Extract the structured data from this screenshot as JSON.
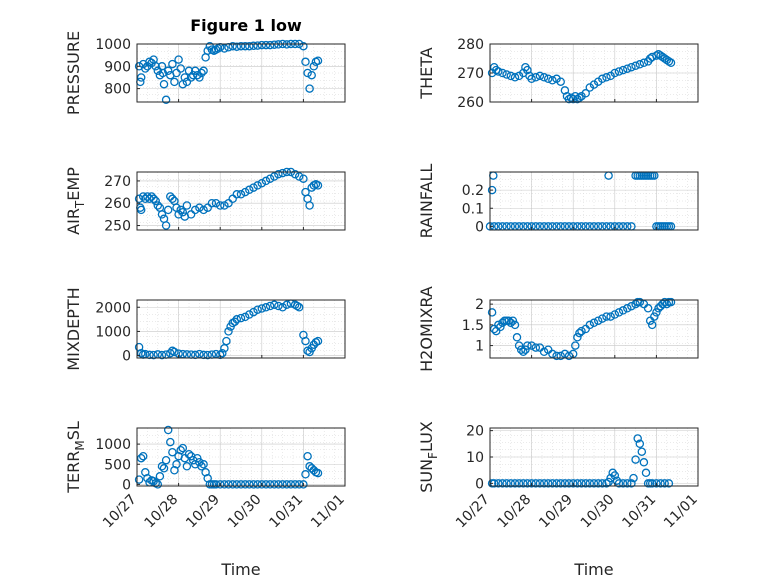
{
  "figure": {
    "title": "Figure 1 low",
    "marker_color": "#0072BD"
  },
  "chart_data": [
    {
      "id": "pressure",
      "type": "scatter",
      "ylabel": "PRESSURE",
      "xlabel": "",
      "ylim": [
        740,
        1000
      ],
      "yticks": [
        800,
        900,
        1000
      ],
      "yticklabels": [
        "800",
        "900",
        "1000"
      ],
      "xlim": [
        0,
        5
      ],
      "xticks": [
        0,
        1,
        2,
        3,
        4,
        5
      ],
      "x": [
        0.05,
        0.08,
        0.1,
        0.15,
        0.2,
        0.25,
        0.3,
        0.35,
        0.4,
        0.45,
        0.5,
        0.55,
        0.6,
        0.62,
        0.65,
        0.7,
        0.75,
        0.8,
        0.85,
        0.9,
        0.95,
        1.0,
        1.05,
        1.1,
        1.15,
        1.2,
        1.25,
        1.3,
        1.35,
        1.4,
        1.45,
        1.5,
        1.55,
        1.6,
        1.65,
        1.7,
        1.75,
        1.8,
        1.85,
        1.9,
        1.95,
        2.0,
        2.1,
        2.2,
        2.3,
        2.4,
        2.5,
        2.6,
        2.7,
        2.8,
        2.9,
        3.0,
        3.1,
        3.2,
        3.3,
        3.4,
        3.5,
        3.6,
        3.7,
        3.8,
        3.9,
        4.0,
        4.05,
        4.1,
        4.15,
        4.2,
        4.25,
        4.3,
        4.35
      ],
      "y": [
        900,
        830,
        850,
        910,
        890,
        900,
        920,
        915,
        930,
        900,
        880,
        860,
        900,
        870,
        820,
        750,
        880,
        860,
        910,
        830,
        870,
        930,
        890,
        820,
        850,
        830,
        880,
        850,
        860,
        880,
        860,
        850,
        870,
        880,
        940,
        970,
        990,
        975,
        970,
        975,
        980,
        985,
        980,
        985,
        990,
        988,
        990,
        990,
        990,
        992,
        993,
        995,
        995,
        995,
        997,
        998,
        1000,
        998,
        1000,
        1000,
        1000,
        990,
        920,
        870,
        800,
        860,
        900,
        920,
        925
      ]
    },
    {
      "id": "theta",
      "type": "scatter",
      "ylabel": "THETA",
      "xlabel": "",
      "ylim": [
        260,
        280
      ],
      "yticks": [
        260,
        270,
        280
      ],
      "yticklabels": [
        "260",
        "270",
        "280"
      ],
      "xlim": [
        0,
        5
      ],
      "xticks": [
        0,
        1,
        2,
        3,
        4,
        5
      ],
      "x": [
        0.05,
        0.1,
        0.15,
        0.2,
        0.3,
        0.4,
        0.5,
        0.6,
        0.7,
        0.8,
        0.85,
        0.9,
        0.95,
        1.0,
        1.1,
        1.2,
        1.3,
        1.4,
        1.5,
        1.6,
        1.7,
        1.8,
        1.85,
        1.9,
        1.95,
        2.0,
        2.05,
        2.1,
        2.15,
        2.2,
        2.3,
        2.4,
        2.5,
        2.6,
        2.7,
        2.8,
        2.9,
        3.0,
        3.1,
        3.2,
        3.3,
        3.4,
        3.5,
        3.6,
        3.7,
        3.8,
        3.85,
        3.9,
        4.0,
        4.05,
        4.1,
        4.15,
        4.2,
        4.25,
        4.3,
        4.35
      ],
      "y": [
        270,
        272,
        271,
        270.5,
        270,
        269.5,
        269,
        268.5,
        269,
        270,
        272,
        271,
        269,
        268,
        268.5,
        269,
        268.5,
        268,
        267.5,
        268,
        267,
        264,
        262,
        261,
        261.5,
        261,
        262,
        261,
        261.5,
        262,
        263,
        265,
        266,
        267,
        268,
        268.5,
        269,
        270,
        270.5,
        271,
        271.5,
        272,
        272.5,
        273,
        273.5,
        274,
        275,
        275.5,
        276,
        276.5,
        276,
        275.5,
        275,
        274.5,
        274,
        273.5
      ]
    },
    {
      "id": "air_temp",
      "type": "scatter",
      "ylabel": "AIR_TEMP",
      "xlabel": "",
      "ylim": [
        248,
        274
      ],
      "yticks": [
        250,
        260,
        270
      ],
      "yticklabels": [
        "250",
        "260",
        "270"
      ],
      "xlim": [
        0,
        5
      ],
      "xticks": [
        0,
        1,
        2,
        3,
        4,
        5
      ],
      "x": [
        0.05,
        0.08,
        0.1,
        0.15,
        0.2,
        0.25,
        0.3,
        0.35,
        0.4,
        0.45,
        0.5,
        0.55,
        0.6,
        0.65,
        0.7,
        0.75,
        0.8,
        0.85,
        0.9,
        0.95,
        1.0,
        1.05,
        1.1,
        1.15,
        1.2,
        1.3,
        1.4,
        1.5,
        1.6,
        1.7,
        1.8,
        1.9,
        2.0,
        2.1,
        2.2,
        2.3,
        2.4,
        2.5,
        2.6,
        2.7,
        2.8,
        2.9,
        3.0,
        3.1,
        3.2,
        3.3,
        3.4,
        3.5,
        3.6,
        3.7,
        3.8,
        3.9,
        4.0,
        4.05,
        4.1,
        4.15,
        4.2,
        4.25,
        4.3,
        4.35
      ],
      "y": [
        262,
        258,
        257,
        263,
        262,
        263,
        262,
        263,
        262,
        261,
        259,
        258,
        255,
        253,
        250,
        257,
        263,
        262,
        261,
        258,
        255,
        257,
        256,
        254,
        259,
        255,
        257,
        258,
        257,
        258,
        260,
        260,
        259,
        259,
        260,
        262,
        264,
        264,
        265,
        266,
        267,
        268,
        269,
        270,
        271,
        272,
        273,
        273.5,
        274,
        274,
        273,
        272,
        271,
        265,
        262,
        259,
        267,
        268,
        268.5,
        268
      ]
    },
    {
      "id": "rainfall",
      "type": "scatter",
      "ylabel": "RAINFALL",
      "xlabel": "",
      "ylim": [
        -0.02,
        0.3
      ],
      "yticks": [
        0,
        0.1,
        0.2
      ],
      "yticklabels": [
        "0",
        "0.1",
        "0.2"
      ],
      "xlim": [
        0,
        5
      ],
      "xticks": [
        0,
        1,
        2,
        3,
        4,
        5
      ],
      "x": [
        0.0,
        0.05,
        0.08,
        0.1,
        0.2,
        0.3,
        0.4,
        0.5,
        0.6,
        0.7,
        0.8,
        0.9,
        1.0,
        1.1,
        1.2,
        1.3,
        1.4,
        1.5,
        1.6,
        1.7,
        1.8,
        1.9,
        2.0,
        2.1,
        2.2,
        2.3,
        2.4,
        2.5,
        2.6,
        2.7,
        2.8,
        2.85,
        2.9,
        3.0,
        3.1,
        3.2,
        3.3,
        3.4,
        3.5,
        3.55,
        3.6,
        3.65,
        3.7,
        3.75,
        3.8,
        3.85,
        3.9,
        3.95,
        4.0,
        4.05,
        4.1,
        4.15,
        4.2,
        4.25,
        4.3,
        4.35
      ],
      "y": [
        0,
        0.2,
        0.28,
        0,
        0,
        0,
        0,
        0,
        0,
        0,
        0,
        0,
        0,
        0,
        0,
        0,
        0,
        0,
        0,
        0,
        0,
        0,
        0,
        0,
        0,
        0,
        0,
        0,
        0,
        0,
        0,
        0.28,
        0,
        0,
        0,
        0,
        0,
        0,
        0.28,
        0.28,
        0.28,
        0.28,
        0.28,
        0.28,
        0.28,
        0.28,
        0.28,
        0.28,
        0,
        0,
        0,
        0,
        0,
        0,
        0,
        0
      ]
    },
    {
      "id": "mixdepth",
      "type": "scatter",
      "ylabel": "MIXDEPTH",
      "xlabel": "",
      "ylim": [
        -100,
        2300
      ],
      "yticks": [
        0,
        1000,
        2000
      ],
      "yticklabels": [
        "0",
        "1000",
        "2000"
      ],
      "xlim": [
        0,
        5
      ],
      "xticks": [
        0,
        1,
        2,
        3,
        4,
        5
      ],
      "x": [
        0.05,
        0.1,
        0.15,
        0.2,
        0.3,
        0.4,
        0.5,
        0.6,
        0.7,
        0.8,
        0.85,
        0.9,
        1.0,
        1.1,
        1.2,
        1.3,
        1.4,
        1.5,
        1.6,
        1.7,
        1.8,
        1.9,
        2.0,
        2.05,
        2.1,
        2.15,
        2.2,
        2.25,
        2.3,
        2.35,
        2.4,
        2.5,
        2.6,
        2.7,
        2.8,
        2.9,
        3.0,
        3.1,
        3.2,
        3.3,
        3.4,
        3.5,
        3.6,
        3.7,
        3.8,
        3.85,
        3.9,
        4.0,
        4.05,
        4.1,
        4.15,
        4.2,
        4.25,
        4.3,
        4.35
      ],
      "y": [
        350,
        100,
        40,
        60,
        30,
        20,
        50,
        20,
        40,
        100,
        200,
        150,
        80,
        60,
        50,
        40,
        30,
        60,
        30,
        20,
        40,
        60,
        30,
        100,
        300,
        600,
        1000,
        1200,
        1350,
        1400,
        1500,
        1550,
        1600,
        1700,
        1800,
        1900,
        1950,
        2000,
        2050,
        2100,
        2050,
        2000,
        2100,
        2150,
        2100,
        2050,
        2000,
        850,
        600,
        200,
        150,
        300,
        450,
        550,
        600
      ]
    },
    {
      "id": "h2omixra",
      "type": "scatter",
      "ylabel": "H2OMIXRA",
      "xlabel": "",
      "ylim": [
        0.7,
        2.1
      ],
      "yticks": [
        1,
        1.5,
        2
      ],
      "yticklabels": [
        "1",
        "1.5",
        "2"
      ],
      "xlim": [
        0,
        5
      ],
      "xticks": [
        0,
        1,
        2,
        3,
        4,
        5
      ],
      "x": [
        0.05,
        0.1,
        0.15,
        0.2,
        0.25,
        0.3,
        0.35,
        0.4,
        0.45,
        0.5,
        0.55,
        0.6,
        0.65,
        0.7,
        0.75,
        0.8,
        0.85,
        0.9,
        1.0,
        1.1,
        1.2,
        1.3,
        1.4,
        1.5,
        1.6,
        1.7,
        1.8,
        1.9,
        2.0,
        2.05,
        2.1,
        2.15,
        2.2,
        2.3,
        2.4,
        2.5,
        2.6,
        2.7,
        2.8,
        2.9,
        3.0,
        3.1,
        3.2,
        3.3,
        3.4,
        3.5,
        3.55,
        3.6,
        3.7,
        3.8,
        3.85,
        3.9,
        3.95,
        4.0,
        4.05,
        4.1,
        4.15,
        4.2,
        4.25,
        4.3,
        4.35
      ],
      "y": [
        1.8,
        1.4,
        1.35,
        1.5,
        1.45,
        1.55,
        1.6,
        1.6,
        1.6,
        1.55,
        1.6,
        1.5,
        1.2,
        1.0,
        0.9,
        0.85,
        0.9,
        1.0,
        1.0,
        0.95,
        0.95,
        0.85,
        0.9,
        0.8,
        0.75,
        0.75,
        0.8,
        0.75,
        0.8,
        1.0,
        1.2,
        1.3,
        1.35,
        1.4,
        1.5,
        1.55,
        1.6,
        1.65,
        1.7,
        1.7,
        1.75,
        1.8,
        1.85,
        1.9,
        1.95,
        2.0,
        2.05,
        2.05,
        2.0,
        1.9,
        1.6,
        1.5,
        1.7,
        1.8,
        1.9,
        1.95,
        2.0,
        2.05,
        2.0,
        2.05,
        2.05
      ]
    },
    {
      "id": "terr_msl",
      "type": "scatter",
      "ylabel": "TERR_MSL",
      "xlabel": "Time",
      "ylim": [
        -40,
        1400
      ],
      "yticks": [
        0,
        500,
        1000
      ],
      "yticklabels": [
        "0",
        "500",
        "1000"
      ],
      "xlim": [
        0,
        5
      ],
      "xticks": [
        0,
        1,
        2,
        3,
        4,
        5
      ],
      "xticklabels": [
        "10/27",
        "10/28",
        "10/29",
        "10/30",
        "10/31",
        "11/01"
      ],
      "x": [
        0.05,
        0.1,
        0.15,
        0.2,
        0.25,
        0.3,
        0.35,
        0.4,
        0.45,
        0.5,
        0.55,
        0.6,
        0.65,
        0.7,
        0.75,
        0.8,
        0.85,
        0.9,
        0.95,
        1.0,
        1.05,
        1.1,
        1.15,
        1.2,
        1.25,
        1.3,
        1.35,
        1.4,
        1.45,
        1.5,
        1.55,
        1.6,
        1.65,
        1.7,
        1.75,
        1.8,
        1.85,
        1.9,
        2.0,
        2.1,
        2.2,
        2.3,
        2.4,
        2.5,
        2.6,
        2.7,
        2.8,
        2.9,
        3.0,
        3.1,
        3.2,
        3.3,
        3.4,
        3.5,
        3.6,
        3.7,
        3.8,
        3.9,
        4.0,
        4.05,
        4.1,
        4.15,
        4.2,
        4.25,
        4.3,
        4.35
      ],
      "y": [
        120,
        650,
        700,
        300,
        150,
        50,
        100,
        80,
        30,
        0,
        200,
        450,
        400,
        600,
        1350,
        1050,
        800,
        350,
        500,
        700,
        850,
        900,
        650,
        450,
        750,
        700,
        600,
        500,
        650,
        550,
        450,
        500,
        300,
        150,
        0,
        0,
        0,
        0,
        0,
        0,
        0,
        0,
        0,
        0,
        0,
        0,
        0,
        0,
        0,
        0,
        0,
        0,
        0,
        0,
        0,
        0,
        0,
        0,
        0,
        250,
        700,
        450,
        400,
        350,
        300,
        280
      ]
    },
    {
      "id": "sun_flux",
      "type": "scatter",
      "ylabel": "SUN_FLUX",
      "xlabel": "Time",
      "ylim": [
        -1,
        21
      ],
      "yticks": [
        0,
        10,
        20
      ],
      "yticklabels": [
        "0",
        "10",
        "20"
      ],
      "xlim": [
        0,
        5
      ],
      "xticks": [
        0,
        1,
        2,
        3,
        4,
        5
      ],
      "xticklabels": [
        "10/27",
        "10/28",
        "10/29",
        "10/30",
        "10/31",
        "11/01"
      ],
      "x": [
        0.05,
        0.1,
        0.2,
        0.3,
        0.4,
        0.5,
        0.6,
        0.7,
        0.8,
        0.9,
        1.0,
        1.1,
        1.2,
        1.3,
        1.4,
        1.5,
        1.6,
        1.7,
        1.8,
        1.9,
        2.0,
        2.1,
        2.2,
        2.3,
        2.4,
        2.5,
        2.6,
        2.7,
        2.8,
        2.85,
        2.9,
        2.95,
        3.0,
        3.05,
        3.1,
        3.2,
        3.3,
        3.4,
        3.45,
        3.5,
        3.55,
        3.6,
        3.65,
        3.7,
        3.75,
        3.8,
        3.85,
        3.9,
        4.0,
        4.1,
        4.2,
        4.3
      ],
      "y": [
        0,
        0,
        0,
        0,
        0,
        0,
        0,
        0,
        0,
        0,
        0,
        0,
        0,
        0,
        0,
        0,
        0,
        0,
        0,
        0,
        0,
        0,
        0,
        0,
        0,
        0,
        0,
        0,
        0,
        0.5,
        2,
        4,
        3,
        1,
        0,
        0,
        0,
        0,
        2,
        9,
        17,
        15,
        12,
        8,
        4,
        0,
        0,
        0,
        0,
        0,
        0,
        0
      ]
    }
  ]
}
